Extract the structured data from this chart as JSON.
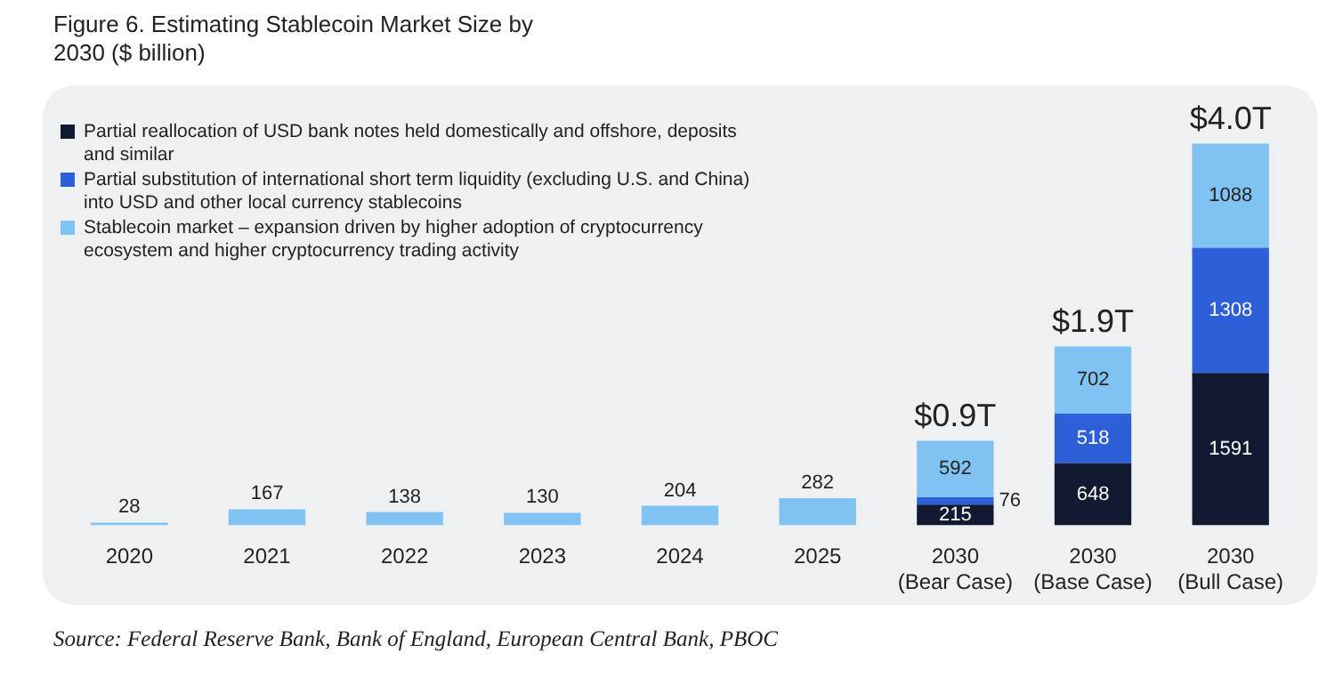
{
  "chart_data": {
    "type": "bar",
    "title": "Figure 6. Estimating Stablecoin Market Size by 2030 ($ billion)",
    "categories": [
      "2020",
      "2021",
      "2022",
      "2023",
      "2024",
      "2025",
      "2030\n(Bear Case)",
      "2030\n(Base Case)",
      "2030\n(Bull Case)"
    ],
    "stacked": true,
    "series": [
      {
        "name": "Partial reallocation of USD bank notes held domestically and offshore, deposits and similar",
        "color": "#111a30",
        "values": [
          null,
          null,
          null,
          null,
          null,
          null,
          215,
          648,
          1591
        ]
      },
      {
        "name": "Partial substitution of international short term liquidity (excluding U.S. and China) into USD and other local currency stablecoins",
        "color": "#2d5fd9",
        "values": [
          null,
          null,
          null,
          null,
          null,
          null,
          76,
          518,
          1308
        ]
      },
      {
        "name": "Stablecoin market – expansion driven by higher adoption of cryptocurrency ecosystem and higher cryptocurrency trading activity",
        "color": "#80c3f2",
        "values": [
          28,
          167,
          138,
          130,
          204,
          282,
          592,
          702,
          1088
        ]
      }
    ],
    "totals": [
      null,
      null,
      null,
      null,
      null,
      null,
      "$0.9T",
      "$1.9T",
      "$4.0T"
    ],
    "data_labels": true,
    "legend": "top left",
    "grid": false,
    "annotations": [
      "Source: Federal Reserve Bank, Bank of England, European Central Bank, PBOC"
    ]
  }
}
